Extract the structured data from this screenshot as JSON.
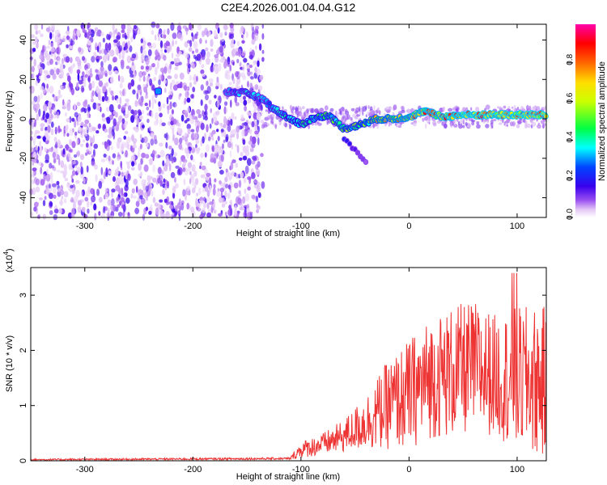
{
  "title": "C2E4.2026.001.04.04.G12",
  "chart_data": [
    {
      "type": "heatmap",
      "name": "spectrogram",
      "xlabel": "Height of straight line (km)",
      "ylabel": "Frequency (Hz)",
      "xlim": [
        -350,
        127
      ],
      "ylim": [
        -50,
        48
      ],
      "xticks": [
        -300,
        -200,
        -100,
        0,
        100
      ],
      "yticks": [
        -40,
        -20,
        0,
        20,
        40
      ],
      "colorbar": {
        "label": "Normalized spectral amplitude",
        "range": [
          0.0,
          1.0
        ],
        "ticks": [
          0.0,
          0.2,
          0.4,
          0.6,
          0.8
        ]
      },
      "noise_region": {
        "x_range": [
          -350,
          -135
        ],
        "freq_range": [
          -50,
          48
        ]
      },
      "signal_track": [
        {
          "x": -230,
          "freq": 14,
          "amplitude": 0.3
        },
        {
          "x": -170,
          "freq": 14,
          "amplitude": 0.3
        },
        {
          "x": -150,
          "freq": 13,
          "amplitude": 0.4
        },
        {
          "x": -135,
          "freq": 10,
          "amplitude": 0.35
        },
        {
          "x": -125,
          "freq": 5,
          "amplitude": 0.4
        },
        {
          "x": -110,
          "freq": 0,
          "amplitude": 0.45
        },
        {
          "x": -100,
          "freq": -3,
          "amplitude": 0.5
        },
        {
          "x": -90,
          "freq": 0,
          "amplitude": 0.5
        },
        {
          "x": -75,
          "freq": 2,
          "amplitude": 0.55
        },
        {
          "x": -60,
          "freq": -5,
          "amplitude": 0.6
        },
        {
          "x": -45,
          "freq": -3,
          "amplitude": 0.6
        },
        {
          "x": -30,
          "freq": 0,
          "amplitude": 0.75
        },
        {
          "x": -15,
          "freq": 0,
          "amplitude": 0.8
        },
        {
          "x": 0,
          "freq": 1,
          "amplitude": 0.85
        },
        {
          "x": 15,
          "freq": 4,
          "amplitude": 0.9
        },
        {
          "x": 30,
          "freq": 1,
          "amplitude": 0.9
        },
        {
          "x": 50,
          "freq": 2,
          "amplitude": 0.95
        },
        {
          "x": 70,
          "freq": 2,
          "amplitude": 0.95
        },
        {
          "x": 90,
          "freq": 2,
          "amplitude": 0.95
        },
        {
          "x": 110,
          "freq": 2,
          "amplitude": 0.95
        },
        {
          "x": 127,
          "freq": 2,
          "amplitude": 0.95
        }
      ],
      "branch_track": [
        {
          "x": -60,
          "freq": -10,
          "amplitude": 0.25
        },
        {
          "x": -50,
          "freq": -16,
          "amplitude": 0.2
        },
        {
          "x": -40,
          "freq": -22,
          "amplitude": 0.15
        }
      ]
    },
    {
      "type": "line",
      "name": "snr",
      "xlabel": "Height of straight line (km)",
      "ylabel": "SNR (10 * v/v)",
      "y_scale_label": "(x10",
      "y_scale_exp": "4",
      "color": "#ee3333",
      "xlim": [
        -350,
        127
      ],
      "ylim": [
        0,
        3.5
      ],
      "xticks": [
        -300,
        -200,
        -100,
        0,
        100
      ],
      "yticks": [
        0,
        1,
        2,
        3
      ],
      "envelope": {
        "x": [
          -350,
          -110,
          -100,
          -80,
          -60,
          -40,
          -20,
          0,
          20,
          40,
          60,
          80,
          100,
          127
        ],
        "mean": [
          0.02,
          0.04,
          0.2,
          0.3,
          0.45,
          0.7,
          1.0,
          1.2,
          1.5,
          1.6,
          1.7,
          1.55,
          1.5,
          1.4
        ],
        "amplitude": [
          0.015,
          0.02,
          0.15,
          0.2,
          0.3,
          0.5,
          0.8,
          1.0,
          1.1,
          1.2,
          1.2,
          1.1,
          1.3,
          1.4
        ]
      }
    }
  ]
}
